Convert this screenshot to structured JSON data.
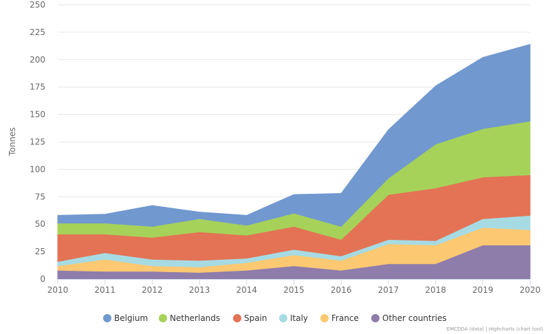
{
  "chart_data": {
    "type": "area",
    "stacked": true,
    "ylabel": "Tonnes",
    "ylim": [
      0,
      250
    ],
    "yticks": [
      0,
      25,
      50,
      75,
      100,
      125,
      150,
      175,
      200,
      225,
      250
    ],
    "grid": true,
    "legend_position": "bottom",
    "x": [
      "2010",
      "2011",
      "2012",
      "2013",
      "2014",
      "2015",
      "2016",
      "2017",
      "2018",
      "2019",
      "2020"
    ],
    "series": [
      {
        "name": "Other countries",
        "color": "#8e7cab",
        "values": [
          8,
          7,
          7,
          6,
          8,
          12,
          8,
          14,
          14,
          31,
          31
        ]
      },
      {
        "name": "France",
        "color": "#fcc871",
        "values": [
          4,
          11,
          5,
          5,
          7,
          10,
          9,
          18,
          17,
          16,
          14
        ]
      },
      {
        "name": "Italy",
        "color": "#a7dbe3",
        "values": [
          4,
          6,
          6,
          6,
          4,
          5,
          4,
          4,
          4,
          8,
          13
        ]
      },
      {
        "name": "Spain",
        "color": "#e37354",
        "values": [
          25,
          17,
          20,
          26,
          21,
          21,
          15,
          41,
          48,
          38,
          37
        ]
      },
      {
        "name": "Netherlands",
        "color": "#a6d25a",
        "values": [
          10,
          10,
          10,
          12,
          9,
          12,
          12,
          15,
          40,
          44,
          49
        ]
      },
      {
        "name": "Belgium",
        "color": "#7198cf",
        "values": [
          7,
          8,
          19,
          6,
          9,
          17,
          30,
          44,
          53,
          65,
          70
        ]
      }
    ],
    "legend_order": [
      "Belgium",
      "Netherlands",
      "Spain",
      "Italy",
      "France",
      "Other countries"
    ],
    "credits": "EMCDDA (data) | Highcharts (chart tool)"
  }
}
